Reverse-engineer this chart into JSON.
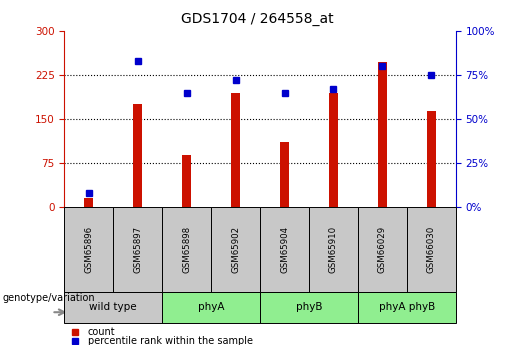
{
  "title": "GDS1704 / 264558_at",
  "samples": [
    "GSM65896",
    "GSM65897",
    "GSM65898",
    "GSM65902",
    "GSM65904",
    "GSM65910",
    "GSM66029",
    "GSM66030"
  ],
  "counts": [
    15,
    175,
    88,
    195,
    110,
    195,
    248,
    163
  ],
  "percentiles": [
    8,
    83,
    65,
    72,
    65,
    67,
    80,
    75
  ],
  "groups": [
    {
      "label": "wild type",
      "indices": [
        0,
        1
      ],
      "color": "#c8c8c8"
    },
    {
      "label": "phyA",
      "indices": [
        2,
        3
      ],
      "color": "#90ee90"
    },
    {
      "label": "phyB",
      "indices": [
        4,
        5
      ],
      "color": "#90ee90"
    },
    {
      "label": "phyA phyB",
      "indices": [
        6,
        7
      ],
      "color": "#90ee90"
    }
  ],
  "ylim_left": [
    0,
    300
  ],
  "ylim_right": [
    0,
    100
  ],
  "left_ticks": [
    0,
    75,
    150,
    225,
    300
  ],
  "right_ticks": [
    0,
    25,
    50,
    75,
    100
  ],
  "bar_color": "#cc1100",
  "percentile_color": "#0000cc",
  "left_axis_color": "#cc1100",
  "right_axis_color": "#0000cc",
  "bg_sample_row": "#c8c8c8",
  "legend_count_color": "#cc1100",
  "legend_pct_color": "#0000cc",
  "bar_width": 0.18
}
